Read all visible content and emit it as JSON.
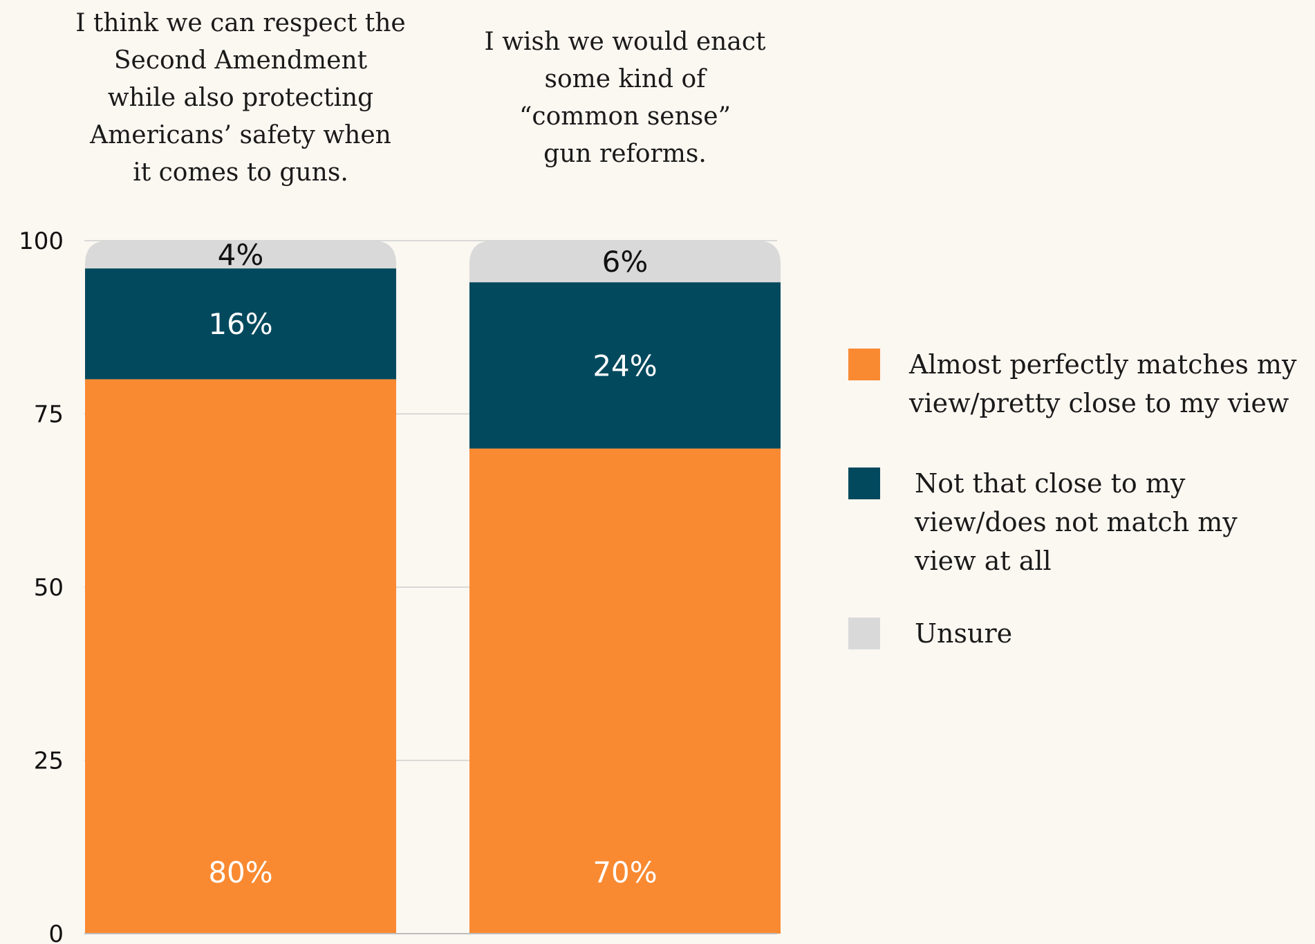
{
  "chart_data": {
    "type": "bar",
    "stacked": true,
    "categories": [
      "I think we can respect the Second Amendment while also protecting Americans’ safety when it comes to guns.",
      "I wish we would enact some kind of “common sense” gun reforms."
    ],
    "category_label_lines": [
      [
        "I think we can respect the",
        "Second Amendment",
        "while also protecting",
        "Americans’ safety when",
        "it comes to guns."
      ],
      [
        "I wish we would enact",
        "some kind of",
        "“common sense”",
        "gun reforms."
      ]
    ],
    "series": [
      {
        "name": "Almost perfectly matches my view/pretty close to my view",
        "legend_lines": [
          "Almost perfectly matches my",
          "view/pretty close to my view"
        ],
        "color": "#f98a32",
        "label_color": "#ffffff",
        "values": [
          80,
          70
        ],
        "labels": [
          "80%",
          "70%"
        ]
      },
      {
        "name": "Not that close to my view/does not match my view at all",
        "legend_lines": [
          "Not that close to my",
          "view/does not match my",
          "view at all"
        ],
        "color": "#03495e",
        "label_color": "#ffffff",
        "values": [
          16,
          24
        ],
        "labels": [
          "16%",
          "24%"
        ]
      },
      {
        "name": "Unsure",
        "legend_lines": [
          "Unsure"
        ],
        "color": "#d9d9d9",
        "label_color": "#111111",
        "values": [
          4,
          6
        ],
        "labels": [
          "4%",
          "6%"
        ]
      }
    ],
    "ylim": [
      0,
      100
    ],
    "yticks": [
      "0",
      "25",
      "50",
      "75",
      "100"
    ],
    "xlabel": "",
    "ylabel": "",
    "title": "",
    "grid": true,
    "legend_position": "right"
  }
}
